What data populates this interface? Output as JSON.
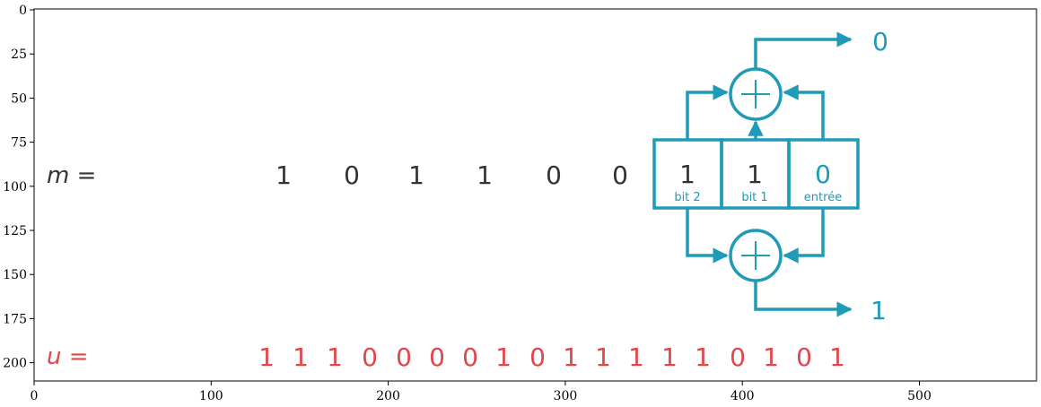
{
  "axes": {
    "x_ticks": [
      "0",
      "100",
      "200",
      "300",
      "400",
      "500"
    ],
    "y_ticks": [
      "0",
      "25",
      "50",
      "75",
      "100",
      "125",
      "150",
      "175",
      "200"
    ]
  },
  "labels": {
    "m_label": "m =",
    "u_label": "u ="
  },
  "m_bits": [
    "1",
    "0",
    "1",
    "1",
    "0",
    "0"
  ],
  "register": [
    {
      "bit": "1",
      "caption": "bit 2"
    },
    {
      "bit": "1",
      "caption": "bit 1"
    },
    {
      "bit": "0",
      "caption": "entrée"
    }
  ],
  "outputs": {
    "top": "0",
    "bottom": "1"
  },
  "u_bits": [
    "1",
    "1",
    "1",
    "0",
    "0",
    "0",
    "0",
    "1",
    "0",
    "1",
    "1",
    "1",
    "1",
    "1",
    "0",
    "1",
    "0",
    "1"
  ],
  "colors": {
    "teal": "#1f9bb7",
    "red": "#e0474c",
    "text": "#333333"
  }
}
